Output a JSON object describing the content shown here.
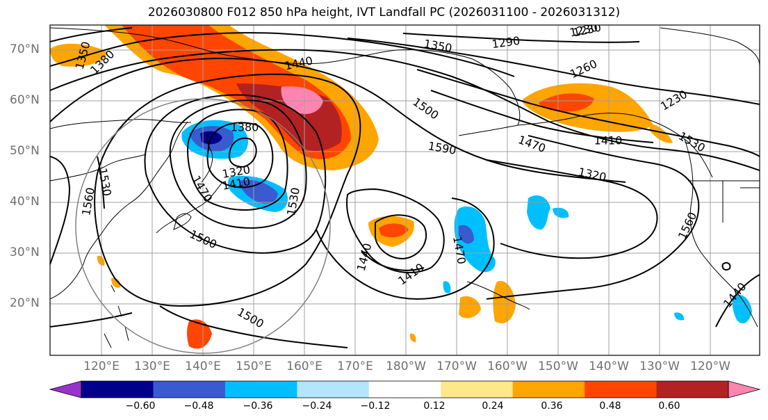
{
  "title": "2026030800 F012 850 hPa height, IVT Landfall PC (2026031100 - 2026031312)",
  "lat_labels": [
    "70°N",
    "60°N",
    "50°N",
    "40°N",
    "30°N",
    "20°N"
  ],
  "lon_labels": [
    "120°E",
    "130°E",
    "140°E",
    "150°E",
    "160°E",
    "170°E",
    "180°W",
    "170°W",
    "160°W",
    "150°W",
    "140°W",
    "130°W",
    "120°W"
  ],
  "contour_labels": [
    "1230",
    "1350",
    "1380",
    "1350",
    "1290",
    "1230",
    "1440",
    "1260",
    "1230",
    "1500",
    "1380",
    "1590",
    "1470",
    "1410",
    "1320",
    "1530",
    "1560",
    "1410",
    "1320",
    "1560",
    "1530",
    "1440",
    "1500",
    "1470",
    "1440",
    "1410",
    "1530",
    "1500",
    "1470"
  ],
  "colorbar": {
    "colors": [
      "#9932cc",
      "#00008b",
      "#3a5ad0",
      "#00bfff",
      "#b3e5fc",
      "#ffffff",
      "#ffe88a",
      "#ffa500",
      "#ff4500",
      "#b22222",
      "#ff85b0"
    ],
    "tick_labels": [
      "−0.60",
      "−0.48",
      "−0.36",
      "−0.24",
      "−0.12",
      "0.12",
      "0.24",
      "0.36",
      "0.48",
      "0.60"
    ]
  }
}
